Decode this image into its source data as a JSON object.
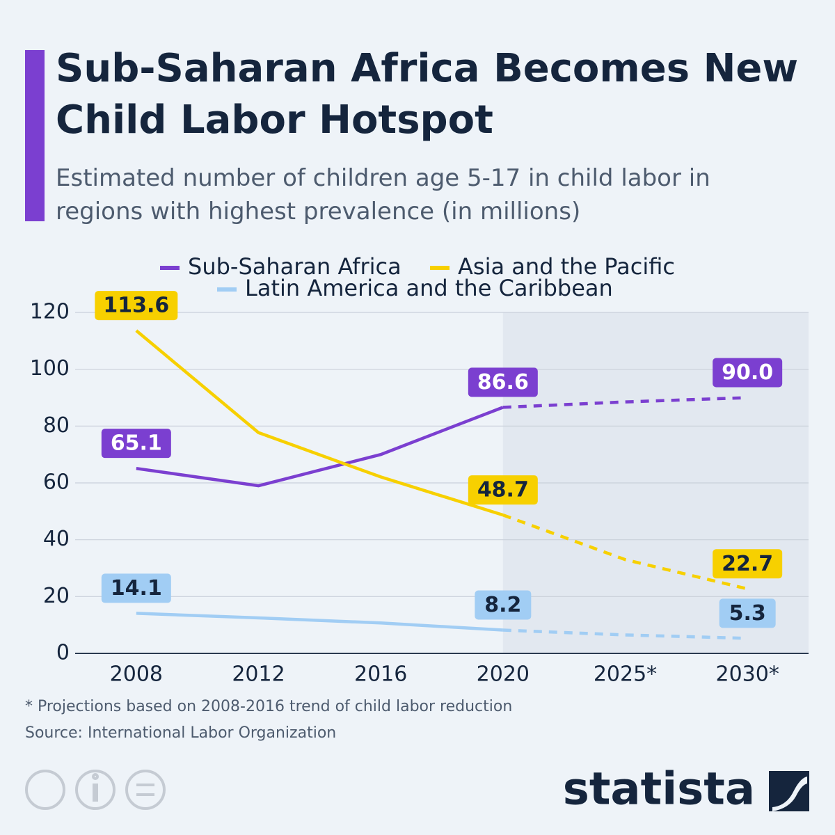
{
  "chart_data": {
    "type": "line",
    "title": "Sub-Saharan Africa Becomes New Child Labor Hotspot",
    "subtitle": "Estimated number of children age 5-17 in child labor in regions with highest prevalence (in millions)",
    "categories": [
      "2008",
      "2012",
      "2016",
      "2020",
      "2025*",
      "2030*"
    ],
    "series": [
      {
        "name": "Sub-Saharan Africa",
        "color": "#7b3fd0",
        "values": [
          65.1,
          59,
          70,
          86.6,
          88.5,
          90.0
        ],
        "value_labels": [
          "65.1",
          null,
          null,
          "86.6",
          null,
          "90.0"
        ]
      },
      {
        "name": "Asia and the Pacific",
        "color": "#f7d000",
        "values": [
          113.6,
          77.7,
          62.1,
          48.7,
          33,
          22.7
        ],
        "value_labels": [
          "113.6",
          null,
          null,
          "48.7",
          null,
          "22.7"
        ]
      },
      {
        "name": "Latin America and the Caribbean",
        "color": "#a1cdf4",
        "values": [
          14.1,
          12.5,
          10.7,
          8.2,
          6.5,
          5.3
        ],
        "value_labels": [
          "14.1",
          null,
          null,
          "8.2",
          null,
          "5.3"
        ]
      }
    ],
    "ylim": [
      0,
      120
    ],
    "yticks": [
      0,
      20,
      40,
      60,
      80,
      100,
      120
    ],
    "grid": true,
    "legend": "top",
    "footnote": "* Projections based on 2008-2016 trend of child labor reduction",
    "source": "Source: International Labor Organization",
    "brand": "statista"
  }
}
